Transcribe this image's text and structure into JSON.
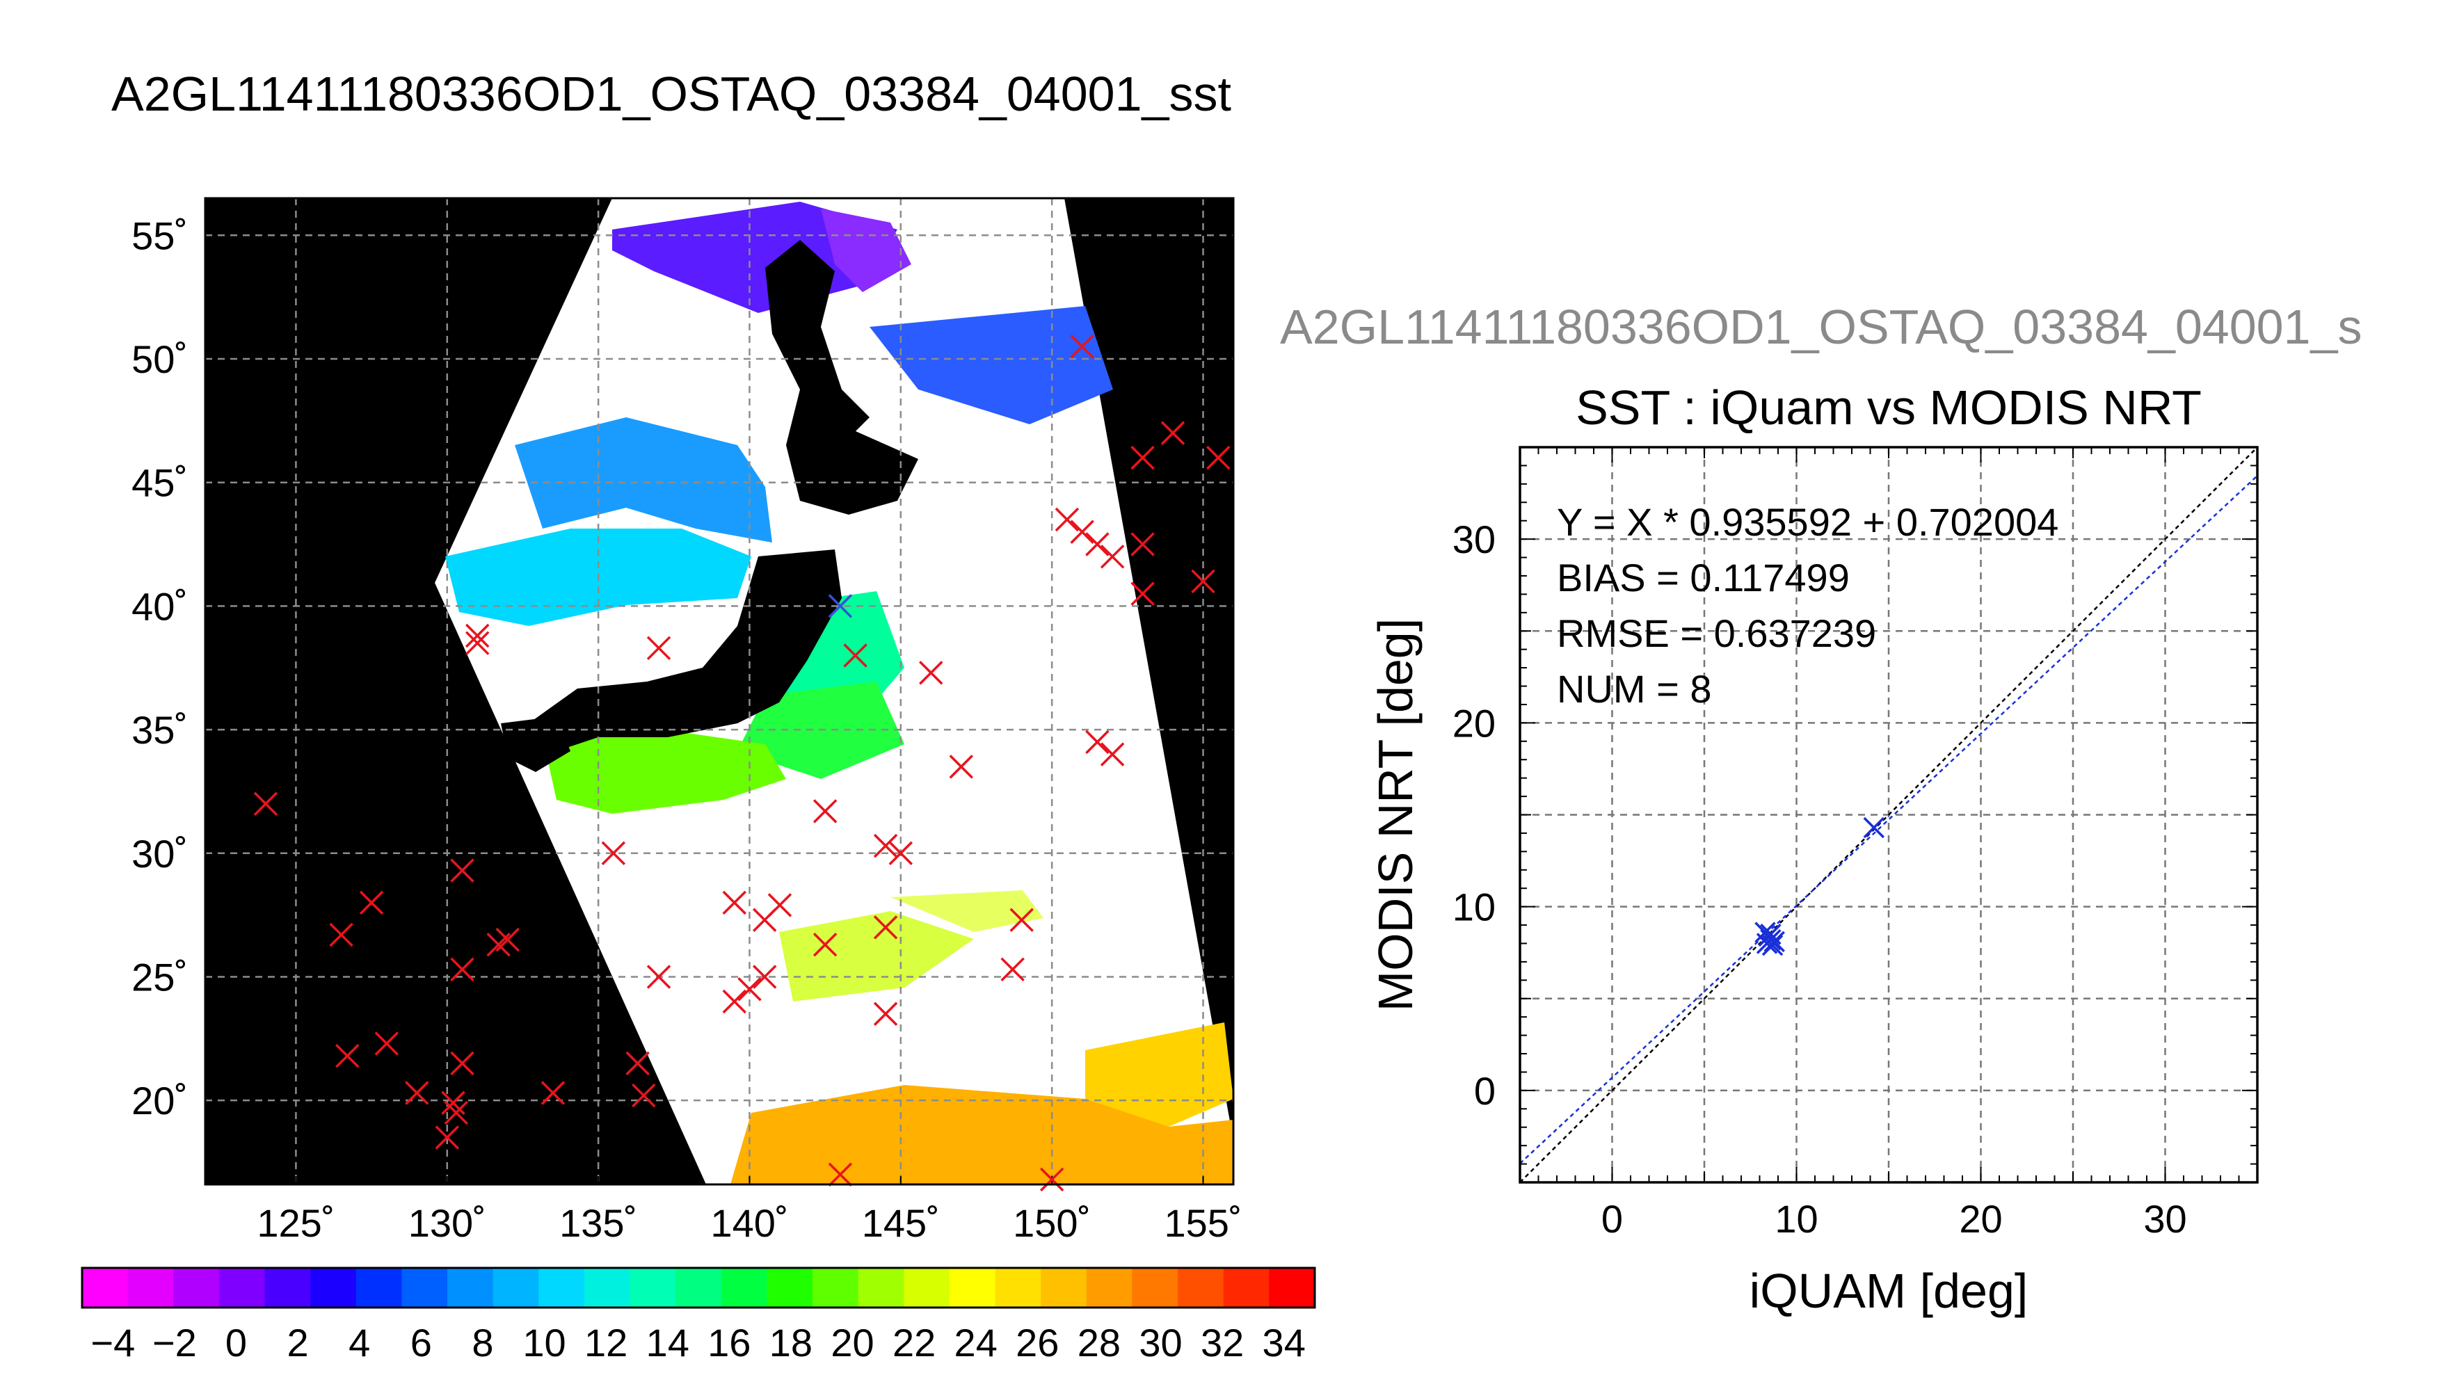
{
  "main_title": "A2GL11411180336OD1_OSTAQ_03384_04001_sst",
  "map": {
    "lon_labels": [
      "125˚",
      "130˚",
      "135˚",
      "140˚",
      "145˚",
      "150˚",
      "155˚"
    ],
    "lat_labels": [
      "55˚",
      "50˚",
      "45˚",
      "40˚",
      "35˚",
      "30˚",
      "25˚",
      "20˚"
    ],
    "lon_values": [
      125,
      130,
      135,
      140,
      145,
      150,
      155
    ],
    "lat_values": [
      55,
      50,
      45,
      40,
      35,
      30,
      25,
      20
    ],
    "lon_range": [
      122,
      156
    ],
    "lat_range": [
      16.6,
      56.5
    ],
    "marker_color": "#e8141e",
    "matched_marker_color": "#3a4fd8",
    "matched_points": [
      [
        143,
        40
      ]
    ],
    "red_points": [
      [
        151,
        50.5
      ],
      [
        154,
        47
      ],
      [
        153,
        46
      ],
      [
        155.5,
        46
      ],
      [
        150.5,
        43.5
      ],
      [
        151,
        43
      ],
      [
        151.5,
        42.5
      ],
      [
        152,
        42
      ],
      [
        153,
        42.5
      ],
      [
        153,
        40.5
      ],
      [
        155,
        41
      ],
      [
        131,
        38.5
      ],
      [
        131,
        38.8
      ],
      [
        137,
        38.3
      ],
      [
        143.5,
        38
      ],
      [
        146,
        37.3
      ],
      [
        151.5,
        34.5
      ],
      [
        152,
        34
      ],
      [
        147,
        33.5
      ],
      [
        142.5,
        31.7
      ],
      [
        144.5,
        30.3
      ],
      [
        145,
        30
      ],
      [
        135.5,
        30
      ],
      [
        124,
        32
      ],
      [
        130.5,
        29.3
      ],
      [
        127.5,
        28
      ],
      [
        126.5,
        26.7
      ],
      [
        132,
        26.5
      ],
      [
        131.7,
        26.3
      ],
      [
        130.5,
        25.3
      ],
      [
        137,
        25
      ],
      [
        139.5,
        28
      ],
      [
        140.5,
        27.3
      ],
      [
        141,
        27.9
      ],
      [
        142.5,
        26.3
      ],
      [
        144.5,
        27
      ],
      [
        149,
        27.3
      ],
      [
        148.7,
        25.3
      ],
      [
        140.5,
        25
      ],
      [
        140,
        24.5
      ],
      [
        139.5,
        24
      ],
      [
        144.5,
        23.5
      ],
      [
        126.7,
        21.8
      ],
      [
        128,
        22.3
      ],
      [
        130.5,
        21.5
      ],
      [
        136.3,
        21.5
      ],
      [
        129,
        20.3
      ],
      [
        133.5,
        20.3
      ],
      [
        136.5,
        20.2
      ],
      [
        130.2,
        19.9
      ],
      [
        130.3,
        19.5
      ],
      [
        130,
        18.5
      ],
      [
        143,
        17
      ],
      [
        150,
        16.8
      ]
    ]
  },
  "colorbar": {
    "labels": [
      "−4",
      "−2",
      "0",
      "2",
      "4",
      "6",
      "8",
      "10",
      "12",
      "14",
      "16",
      "18",
      "20",
      "22",
      "24",
      "26",
      "28",
      "30",
      "32",
      "34"
    ],
    "min": -5,
    "max": 35,
    "colors": [
      "#ff00ff",
      "#e400ff",
      "#b000ff",
      "#8000ff",
      "#4a00ff",
      "#1c00ff",
      "#0030ff",
      "#0060ff",
      "#0090ff",
      "#00b4ff",
      "#00d8ff",
      "#00f0e0",
      "#00ffb4",
      "#00ff80",
      "#00ff40",
      "#20ff00",
      "#60ff00",
      "#a0ff00",
      "#d8ff00",
      "#ffff00",
      "#ffe000",
      "#ffc000",
      "#ff9c00",
      "#ff7800",
      "#ff5000",
      "#ff2800",
      "#ff0000"
    ]
  },
  "scatter_top_title": "A2GL11411180336OD1_OSTAQ_03384_04001_s",
  "scatter": {
    "title": "SST : iQuam vs MODIS NRT",
    "stats": [
      "Y = X * 0.935592 + 0.702004",
      "BIAS = 0.117499",
      "RMSE = 0.637239",
      "NUM = 8"
    ]
  },
  "chart_data": {
    "type": "scatter",
    "title": "SST : iQuam vs MODIS NRT",
    "xlabel": "iQUAM [deg]",
    "ylabel": "MODIS NRT [deg]",
    "xlim": [
      -5,
      35
    ],
    "ylim": [
      -5,
      35
    ],
    "xticks": [
      0,
      10,
      20,
      30
    ],
    "yticks": [
      0,
      10,
      20,
      30
    ],
    "grid": true,
    "point_color": "#1a2fd8",
    "points": [
      [
        8.3,
        8.6
      ],
      [
        8.6,
        8.2
      ],
      [
        8.7,
        7.9
      ],
      [
        8.5,
        8.4
      ],
      [
        8.8,
        8.1
      ],
      [
        8.4,
        8.0
      ],
      [
        14.2,
        14.3
      ],
      [
        8.6,
        8.5
      ]
    ],
    "fit": {
      "slope": 0.935592,
      "intercept": 0.702004,
      "color": "#1a2fd8"
    },
    "identity_line": {
      "color": "#000000"
    }
  }
}
